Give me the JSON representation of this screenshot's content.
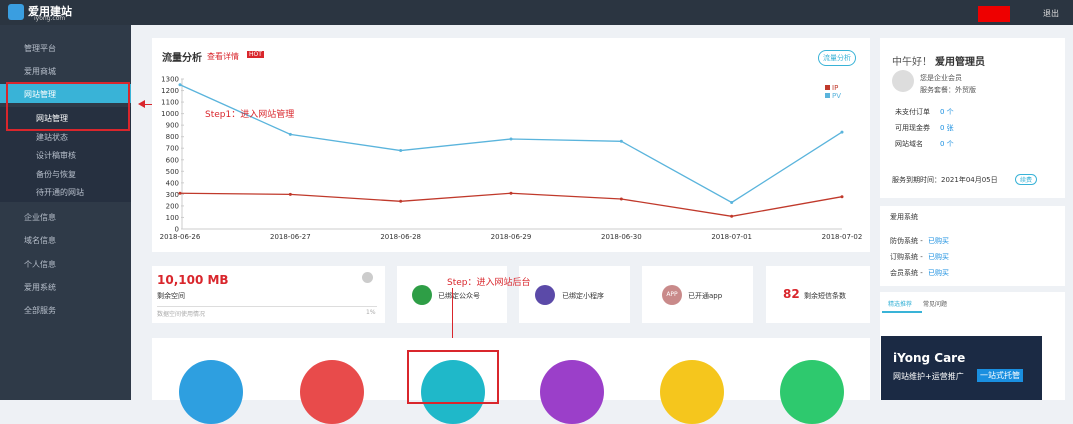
{
  "header": {
    "logo": "爱用建站",
    "logo_sub": "iyong.com",
    "logout": "退出"
  },
  "sidebar": {
    "items": [
      "管理平台",
      "爱用商城",
      "网站管理"
    ],
    "subitems": [
      "网站管理",
      "建站状态",
      "设计稿审核",
      "备份与恢复",
      "待开通的网站"
    ],
    "more": [
      "企业信息",
      "域名信息",
      "个人信息",
      "爱用系统",
      "全部服务"
    ]
  },
  "card": {
    "title": "流量分析",
    "link": "查看详情",
    "badge": "HOT",
    "button": "流量分析"
  },
  "chart_data": {
    "type": "line",
    "categories": [
      "2018-06-26",
      "2018-06-27",
      "2018-06-28",
      "2018-06-29",
      "2018-06-30",
      "2018-07-01",
      "2018-07-02"
    ],
    "series": [
      {
        "name": "IP",
        "color": "#c0392b",
        "values": [
          310,
          300,
          240,
          310,
          260,
          110,
          280
        ]
      },
      {
        "name": "PV",
        "color": "#5ab4dc",
        "values": [
          1250,
          820,
          680,
          780,
          760,
          230,
          840
        ]
      }
    ],
    "ylim": [
      0,
      1300
    ],
    "yticks": [
      0,
      100,
      200,
      300,
      400,
      500,
      600,
      700,
      800,
      900,
      1000,
      1100,
      1200,
      1300
    ],
    "legend": "top-right"
  },
  "annotations": [
    "Step1：进入网站管理",
    "Step：进入网站后台"
  ],
  "stats": {
    "space": "10,100 MB",
    "space_label": "剩余空间",
    "space_note": "数据空间使用情况",
    "space_pct": "1%",
    "wechat": "已绑定公众号",
    "mini": "已绑定小程序",
    "app_icon": "APP",
    "app": "已开通app",
    "sms": "82",
    "sms_label": "剩余短信条数"
  },
  "profile": {
    "greeting": "中午好！",
    "name": "爱用管理员",
    "member": "您是企业会员",
    "plan": "服务套餐：外贸版",
    "rows": [
      {
        "label": "未支付订单",
        "value": "0 个"
      },
      {
        "label": "可用现金券",
        "value": "0 张"
      },
      {
        "label": "网站域名",
        "value": "0 个"
      }
    ],
    "expire": "服务到期时间：2021年04月05日",
    "renew": "续费"
  },
  "system": {
    "title": "爱用系统",
    "rows": [
      {
        "label": "防伪系统 - ",
        "value": "已购买"
      },
      {
        "label": "订购系统 - ",
        "value": "已购买"
      },
      {
        "label": "会员系统 - ",
        "value": "已购买"
      }
    ]
  },
  "tabs": [
    "精选推荐",
    "常见问题"
  ],
  "banner": {
    "title": "iYong Care",
    "text": "网站维护+运营推广",
    "tag": "一站式托管"
  }
}
